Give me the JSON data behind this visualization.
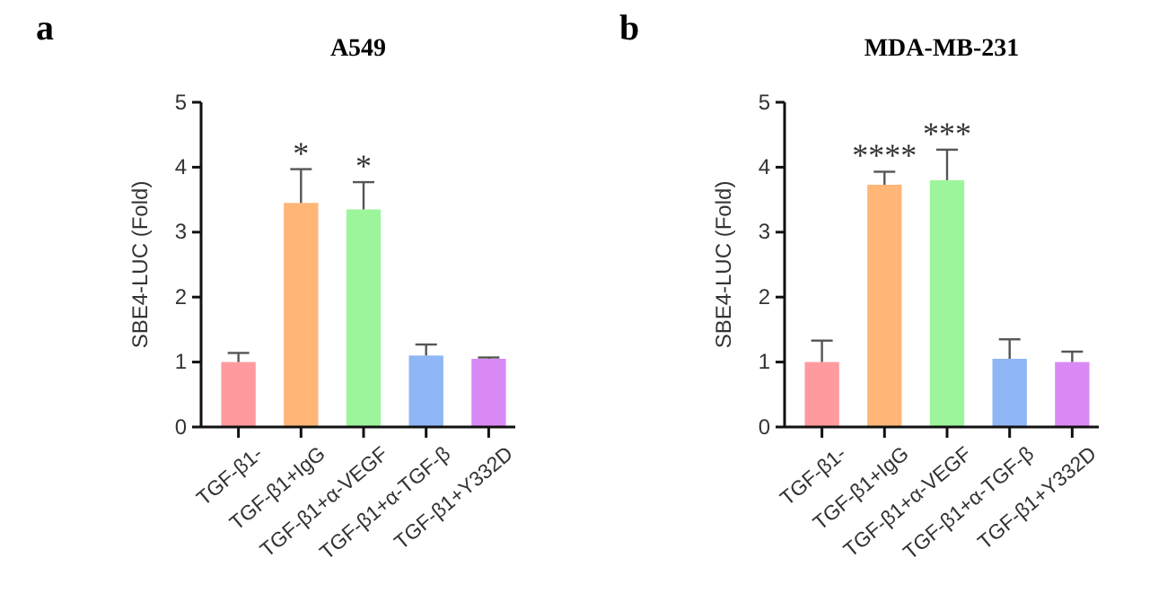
{
  "chart_data": [
    {
      "type": "bar",
      "title": "A549",
      "ylabel": "SBE4-LUC (Fold)",
      "categories": [
        "TGF-β1-",
        "TGF-β1+IgG",
        "TGF-β1+α-VEGF",
        "TGF-β1+α-TGF-β",
        "TGF-β1+Y332D"
      ],
      "values": [
        1.0,
        3.45,
        3.35,
        1.1,
        1.05
      ],
      "errors": [
        0.14,
        0.52,
        0.42,
        0.17,
        0.02
      ],
      "colors": [
        "#ff9a9e",
        "#ffb677",
        "#9cf59a",
        "#8fb6f5",
        "#d98af5"
      ],
      "ylim": [
        0,
        5
      ],
      "yticks": [
        0,
        1,
        2,
        3,
        4,
        5
      ],
      "grid": false,
      "annotations": [
        "a",
        "*",
        "*"
      ]
    },
    {
      "type": "bar",
      "title": "MDA-MB-231",
      "ylabel": "SBE4-LUC (Fold)",
      "categories": [
        "TGF-β1-",
        "TGF-β1+IgG",
        "TGF-β1+α-VEGF",
        "TGF-β1+α-TGF-β",
        "TGF-β1+Y332D"
      ],
      "values": [
        1.0,
        3.73,
        3.8,
        1.05,
        1.0
      ],
      "errors": [
        0.33,
        0.2,
        0.47,
        0.3,
        0.16
      ],
      "colors": [
        "#ff9a9e",
        "#ffb677",
        "#9cf59a",
        "#8fb6f5",
        "#d98af5"
      ],
      "ylim": [
        0,
        5
      ],
      "yticks": [
        0,
        1,
        2,
        3,
        4,
        5
      ],
      "grid": false,
      "annotations": [
        "b",
        "****",
        "***"
      ]
    }
  ]
}
